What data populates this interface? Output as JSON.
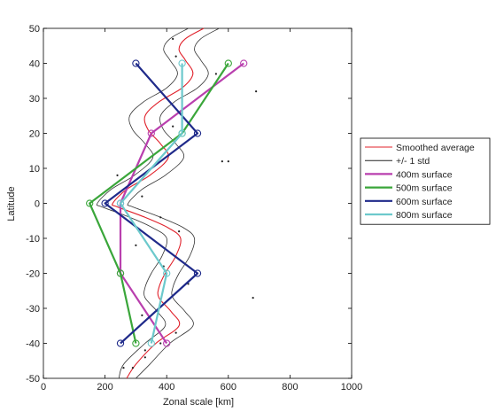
{
  "chart_data": {
    "type": "line",
    "xlabel": "Zonal scale [km]",
    "ylabel": "Latitude",
    "xlim": [
      0,
      1000
    ],
    "ylim": [
      -50,
      50
    ],
    "xticks": [
      "0",
      "200",
      "400",
      "600",
      "800",
      "1000"
    ],
    "yticks": [
      "50",
      "40",
      "30",
      "20",
      "10",
      "0",
      "-10",
      "-20",
      "-30",
      "-40",
      "-50"
    ],
    "legend_position": "right",
    "grid": false,
    "legend": [
      {
        "label": "Smoothed average",
        "color": "#e0202a"
      },
      {
        "label": "+/- 1 std",
        "color": "#222222"
      },
      {
        "label": "400m surface",
        "color": "#b93fae"
      },
      {
        "label": "500m surface",
        "color": "#3aa63a"
      },
      {
        "label": "600m surface",
        "color": "#1f2a8a"
      },
      {
        "label": "800m surface",
        "color": "#6cc9cc"
      }
    ],
    "smooth_series": [
      {
        "name": "Smoothed average",
        "color": "#e0202a",
        "width": 1.1,
        "x": [
          270,
          300,
          365,
          440,
          415,
          375,
          375,
          395,
          430,
          445,
          405,
          330,
          240,
          225,
          270,
          345,
          405,
          380,
          340,
          330,
          375,
          450,
          485,
          460,
          440,
          460,
          520
        ],
        "y": [
          -50,
          -46,
          -40,
          -35,
          -31,
          -27,
          -24,
          -20,
          -15,
          -10,
          -7,
          -4,
          -1,
          0,
          4,
          8,
          13,
          17,
          21,
          25,
          29,
          33,
          37,
          41,
          44,
          47,
          50
        ]
      },
      {
        "name": "+/- 1 std",
        "color": "#333333",
        "width": 0.8,
        "x": [
          245,
          260,
          330,
          395,
          370,
          330,
          330,
          350,
          385,
          400,
          355,
          280,
          190,
          175,
          220,
          295,
          355,
          330,
          290,
          280,
          325,
          400,
          435,
          410,
          390,
          410,
          470
        ],
        "y": [
          -50,
          -46,
          -40,
          -35,
          -31,
          -27,
          -24,
          -20,
          -15,
          -10,
          -7,
          -4,
          -1,
          0,
          4,
          8,
          13,
          17,
          21,
          25,
          29,
          33,
          37,
          41,
          44,
          47,
          50
        ]
      },
      {
        "name": "+/- 1 std",
        "color": "#333333",
        "width": 0.8,
        "x": [
          300,
          345,
          410,
          485,
          460,
          420,
          420,
          440,
          475,
          490,
          455,
          380,
          290,
          275,
          320,
          395,
          455,
          430,
          390,
          380,
          425,
          500,
          535,
          510,
          490,
          510,
          570
        ],
        "y": [
          -50,
          -46,
          -40,
          -35,
          -31,
          -27,
          -24,
          -20,
          -15,
          -10,
          -7,
          -4,
          -1,
          0,
          4,
          8,
          13,
          17,
          21,
          25,
          29,
          33,
          37,
          41,
          44,
          47,
          50
        ]
      }
    ],
    "series": [
      {
        "name": "400m surface",
        "color": "#b93fae",
        "x": [
          400,
          250,
          250,
          350,
          650
        ],
        "y": [
          -40,
          -20,
          0,
          20,
          40
        ]
      },
      {
        "name": "500m surface",
        "color": "#3aa63a",
        "x": [
          300,
          250,
          150,
          450,
          600
        ],
        "y": [
          -40,
          -20,
          0,
          20,
          40
        ]
      },
      {
        "name": "600m surface",
        "color": "#1f2a8a",
        "x": [
          250,
          500,
          200,
          500,
          300
        ],
        "y": [
          -40,
          -20,
          0,
          20,
          40
        ]
      },
      {
        "name": "800m surface",
        "color": "#6cc9cc",
        "x": [
          350,
          400,
          250,
          450,
          450
        ],
        "y": [
          -40,
          -20,
          0,
          20,
          40
        ]
      }
    ],
    "scatter_points": {
      "color": "#222222",
      "x": [
        420,
        430,
        690,
        560,
        400,
        600,
        580,
        420,
        240,
        320,
        380,
        440,
        300,
        390,
        680,
        470,
        320,
        430,
        380,
        330,
        330,
        290,
        260
      ],
      "y": [
        47,
        42,
        32,
        37,
        30,
        12,
        12,
        22,
        8,
        2,
        -4,
        -8,
        -12,
        -18,
        -27,
        -23,
        -32,
        -37,
        -40,
        -42,
        -44,
        -47,
        -47
      ]
    }
  }
}
